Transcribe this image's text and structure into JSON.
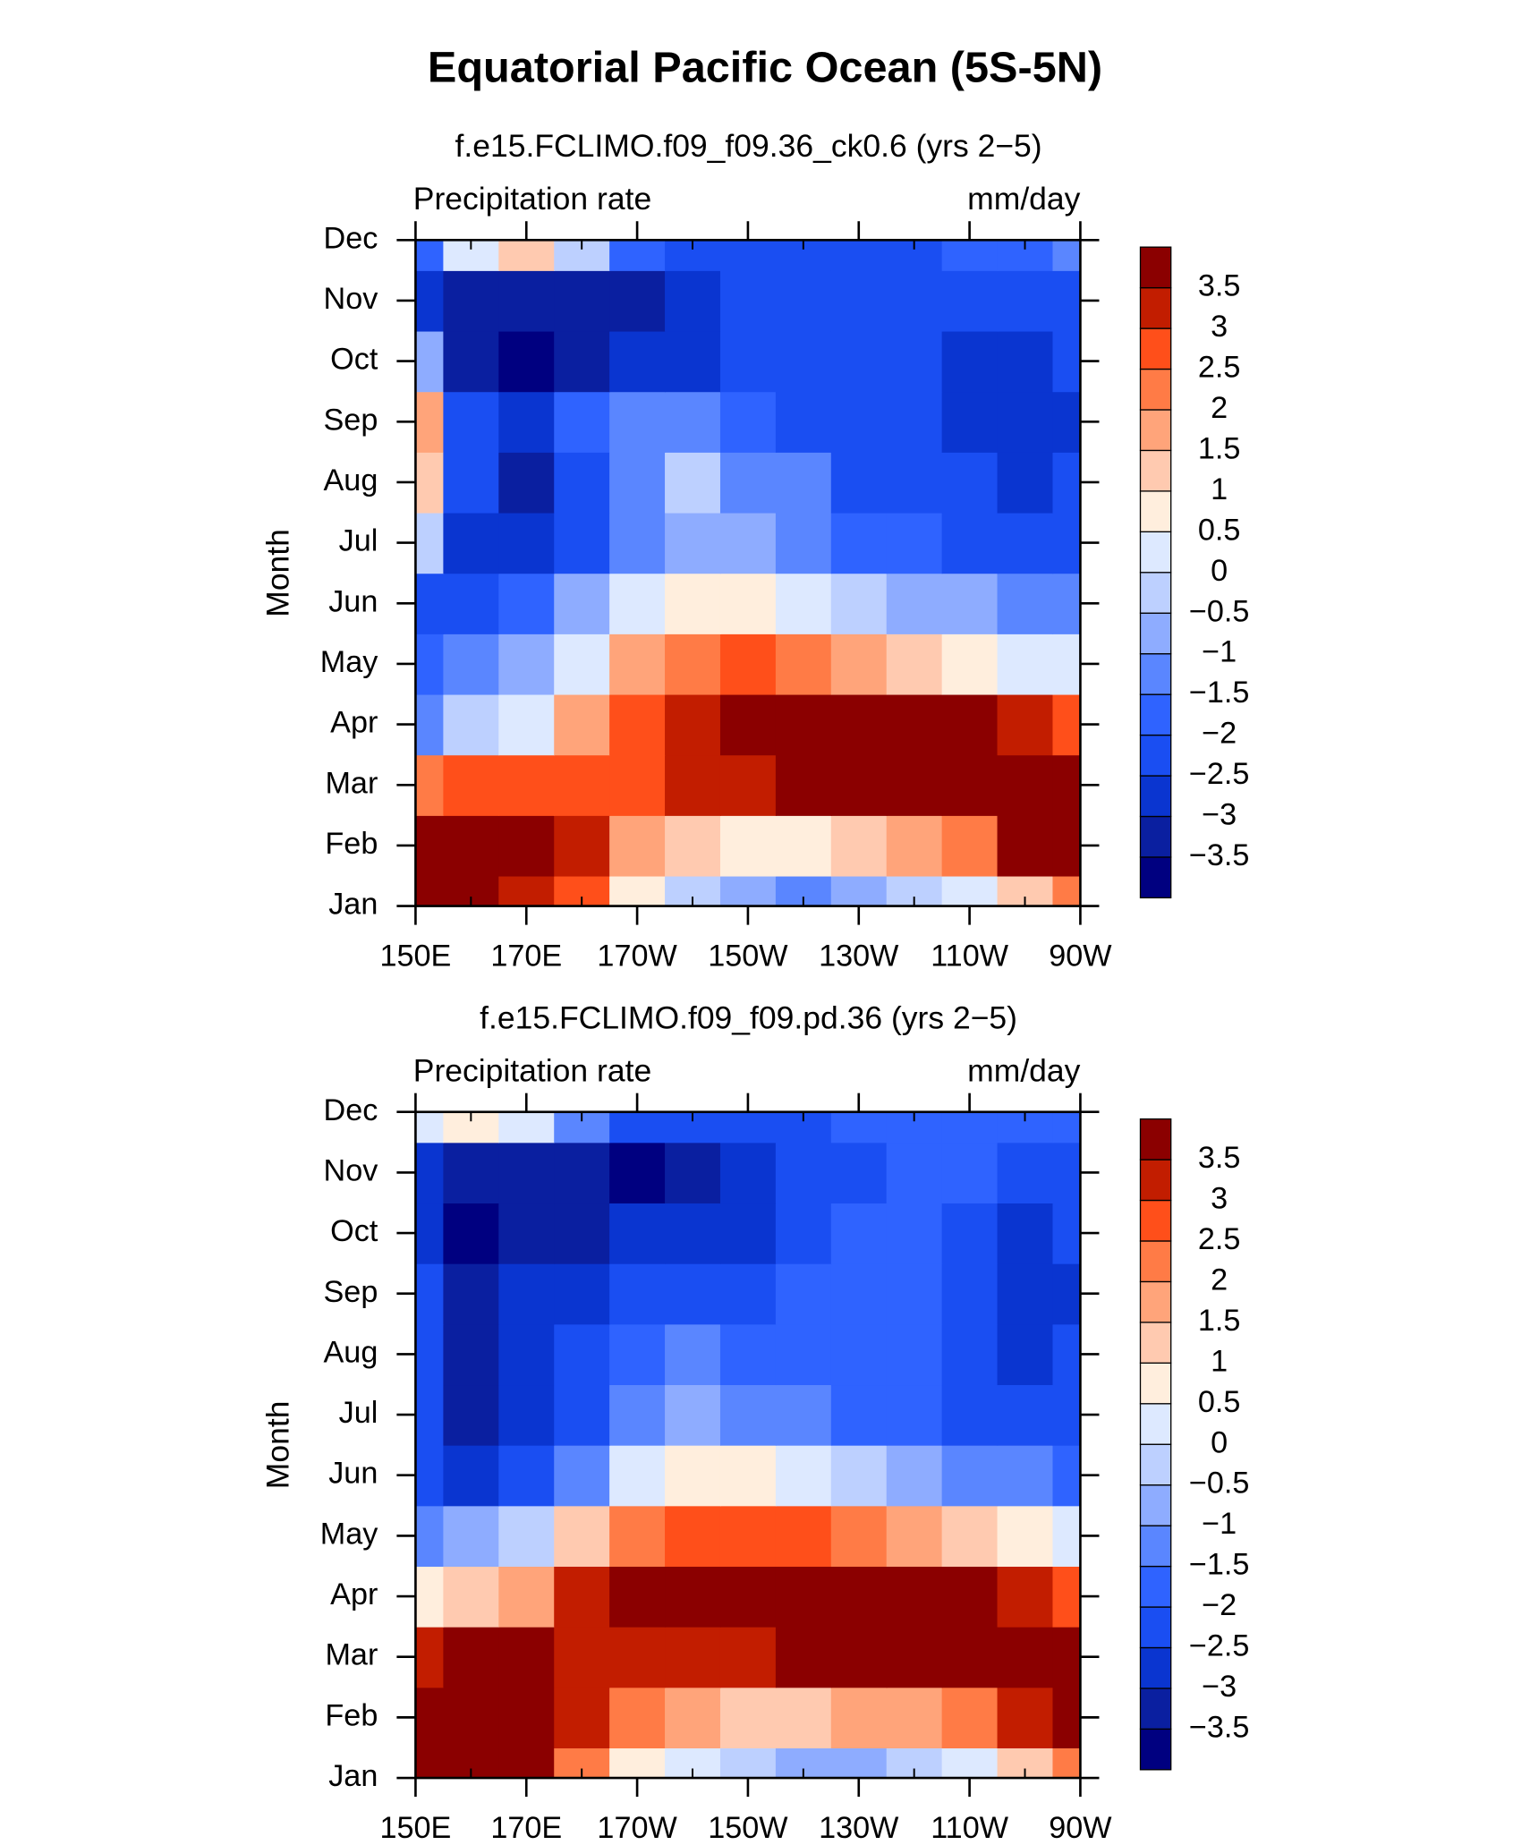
{
  "title": "Equatorial Pacific Ocean (5S-5N)",
  "chart_data": [
    {
      "type": "contour",
      "title": "f.e15.FCLIMO.f09_f09.36_ck0.6 (yrs 2−5)",
      "left_label": "Precipitation rate",
      "right_label": "mm/day",
      "ylabel": "Month",
      "categories": [
        "Jan",
        "Feb",
        "Mar",
        "Apr",
        "May",
        "Jun",
        "Jul",
        "Aug",
        "Sep",
        "Oct",
        "Nov",
        "Dec"
      ],
      "x": [
        150,
        160,
        170,
        180,
        190,
        200,
        210,
        220,
        230,
        240,
        250,
        260,
        270
      ],
      "xlim": [
        150,
        270
      ],
      "xticks": [
        {
          "value": 150,
          "label": "150E"
        },
        {
          "value": 170,
          "label": "170E"
        },
        {
          "value": 190,
          "label": "170W"
        },
        {
          "value": 210,
          "label": "150W"
        },
        {
          "value": 230,
          "label": "130W"
        },
        {
          "value": 250,
          "label": "110W"
        },
        {
          "value": 270,
          "label": "90W"
        }
      ],
      "xminorticks": [
        160,
        180,
        200,
        220,
        240,
        260
      ],
      "z": [
        [
          4,
          4,
          3.5,
          3,
          1,
          0,
          -0.5,
          -1,
          -0.5,
          0,
          0.5,
          1.5,
          2.5
        ],
        [
          4,
          4,
          4,
          3.5,
          2,
          1.5,
          1,
          1,
          1.5,
          2,
          2.5,
          4,
          4
        ],
        [
          2.5,
          3,
          3,
          3,
          3,
          3.5,
          3.5,
          4,
          4,
          4,
          4,
          4,
          4
        ],
        [
          -1,
          0,
          0.5,
          2,
          3,
          3.5,
          4,
          4,
          4,
          4,
          4,
          3.5,
          3
        ],
        [
          -1.5,
          -1,
          -0.5,
          0.5,
          2,
          2.5,
          3,
          2.5,
          2,
          1.5,
          1,
          0.5,
          0.5
        ],
        [
          -2,
          -2,
          -1.5,
          -0.5,
          0.5,
          1,
          1,
          0.5,
          0,
          -0.5,
          -0.5,
          -1,
          -1
        ],
        [
          0,
          -2.5,
          -2.5,
          -2,
          -1,
          -0.5,
          -0.5,
          -1,
          -1.5,
          -1.5,
          -2,
          -2,
          -2
        ],
        [
          1.5,
          -2,
          -3,
          -2,
          -1,
          0,
          -1,
          -1,
          -2,
          -2,
          -2,
          -2.5,
          -2
        ],
        [
          2,
          -2,
          -2.5,
          -1.5,
          -1,
          -1,
          -1.5,
          -2,
          -2,
          -2,
          -2.5,
          -2.5,
          -2.5
        ],
        [
          -0.5,
          -3,
          -3.5,
          -3,
          -2.5,
          -2.5,
          -2,
          -2,
          -2,
          -2,
          -2.5,
          -2.5,
          -2
        ],
        [
          -2.5,
          -3,
          -3,
          -3,
          -3,
          -2.5,
          -2,
          -2,
          -2,
          -2,
          -2,
          -2,
          -2
        ],
        [
          -1.5,
          0.5,
          1.5,
          0,
          -1.5,
          -2,
          -2,
          -2,
          -2,
          -2,
          -1.5,
          -1.5,
          -1
        ]
      ],
      "levels": [
        {
          "value": -3.5,
          "label": "−3.5"
        },
        {
          "value": -3,
          "label": "−3"
        },
        {
          "value": -2.5,
          "label": "−2.5"
        },
        {
          "value": -2,
          "label": "−2"
        },
        {
          "value": -1.5,
          "label": "−1.5"
        },
        {
          "value": -1,
          "label": "−1"
        },
        {
          "value": -0.5,
          "label": "−0.5"
        },
        0,
        0.5,
        1,
        1.5,
        2,
        2.5,
        3,
        3.5
      ],
      "colors": [
        "#000080",
        "#0a1fa0",
        "#0a35d0",
        "#1a4ef2",
        "#2f63ff",
        "#5a86ff",
        "#8eacff",
        "#bdd0ff",
        "#dde9ff",
        "#ffeedd",
        "#ffcab0",
        "#ffa47a",
        "#ff7b46",
        "#ff4f1a",
        "#c21d00",
        "#8b0000"
      ]
    },
    {
      "type": "contour",
      "title": "f.e15.FCLIMO.f09_f09.pd.36 (yrs 2−5)",
      "left_label": "Precipitation rate",
      "right_label": "mm/day",
      "ylabel": "Month",
      "categories": [
        "Jan",
        "Feb",
        "Mar",
        "Apr",
        "May",
        "Jun",
        "Jul",
        "Aug",
        "Sep",
        "Oct",
        "Nov",
        "Dec"
      ],
      "x": [
        150,
        160,
        170,
        180,
        190,
        200,
        210,
        220,
        230,
        240,
        250,
        260,
        270
      ],
      "xlim": [
        150,
        270
      ],
      "xticks": [
        {
          "value": 150,
          "label": "150E"
        },
        {
          "value": 170,
          "label": "170E"
        },
        {
          "value": 190,
          "label": "170W"
        },
        {
          "value": 210,
          "label": "150W"
        },
        {
          "value": 230,
          "label": "130W"
        },
        {
          "value": 250,
          "label": "110W"
        },
        {
          "value": 270,
          "label": "90W"
        }
      ],
      "xminorticks": [
        160,
        180,
        200,
        220,
        240,
        260
      ],
      "z": [
        [
          4,
          4,
          4,
          2.5,
          1,
          0.5,
          0,
          -0.5,
          -0.5,
          0,
          0.5,
          1.5,
          2.5
        ],
        [
          4,
          4,
          4,
          3.5,
          2.5,
          2,
          1.5,
          1.5,
          2,
          2,
          2.5,
          3.5,
          4
        ],
        [
          3.5,
          4,
          4,
          3.5,
          3.5,
          3.5,
          3.5,
          4,
          4,
          4,
          4,
          4,
          4
        ],
        [
          1,
          1.5,
          2,
          3.5,
          4,
          4,
          4,
          4,
          4,
          4,
          4,
          3.5,
          3
        ],
        [
          -1,
          -0.5,
          0,
          1.5,
          2.5,
          3,
          3,
          3,
          2.5,
          2,
          1.5,
          1,
          0.5
        ],
        [
          -2,
          -2.5,
          -2,
          -1,
          0.5,
          1,
          1,
          0.5,
          0,
          -0.5,
          -1,
          -1,
          -1.5
        ],
        [
          -2,
          -3,
          -2.5,
          -2,
          -1,
          -0.5,
          -1,
          -1,
          -1.5,
          -1.5,
          -2,
          -2,
          -2
        ],
        [
          -2,
          -3,
          -2.5,
          -2,
          -1.5,
          -1,
          -1.5,
          -1.5,
          -1.5,
          -1.5,
          -2,
          -2.5,
          -2
        ],
        [
          -2,
          -3,
          -2.5,
          -2.5,
          -2,
          -2,
          -2,
          -1.5,
          -1.5,
          -1.5,
          -2,
          -2.5,
          -2.5
        ],
        [
          -2.5,
          -3.5,
          -3,
          -3,
          -2.5,
          -2.5,
          -2.5,
          -2,
          -1.5,
          -1.5,
          -2,
          -2.5,
          -2
        ],
        [
          -2.5,
          -3,
          -3,
          -3,
          -3.5,
          -3,
          -2.5,
          -2,
          -2,
          -1.5,
          -1.5,
          -2,
          -2
        ],
        [
          0.5,
          1,
          0.5,
          -1,
          -2,
          -2,
          -2,
          -2,
          -1.5,
          -1.5,
          -1.5,
          -1.5,
          -1.5
        ]
      ],
      "levels": [
        {
          "value": -3.5,
          "label": "−3.5"
        },
        {
          "value": -3,
          "label": "−3"
        },
        {
          "value": -2.5,
          "label": "−2.5"
        },
        {
          "value": -2,
          "label": "−2"
        },
        {
          "value": -1.5,
          "label": "−1.5"
        },
        {
          "value": -1,
          "label": "−1"
        },
        {
          "value": -0.5,
          "label": "−0.5"
        },
        0,
        0.5,
        1,
        1.5,
        2,
        2.5,
        3,
        3.5
      ],
      "colors": [
        "#000080",
        "#0a1fa0",
        "#0a35d0",
        "#1a4ef2",
        "#2f63ff",
        "#5a86ff",
        "#8eacff",
        "#bdd0ff",
        "#dde9ff",
        "#ffeedd",
        "#ffcab0",
        "#ffa47a",
        "#ff7b46",
        "#ff4f1a",
        "#c21d00",
        "#8b0000"
      ]
    }
  ]
}
